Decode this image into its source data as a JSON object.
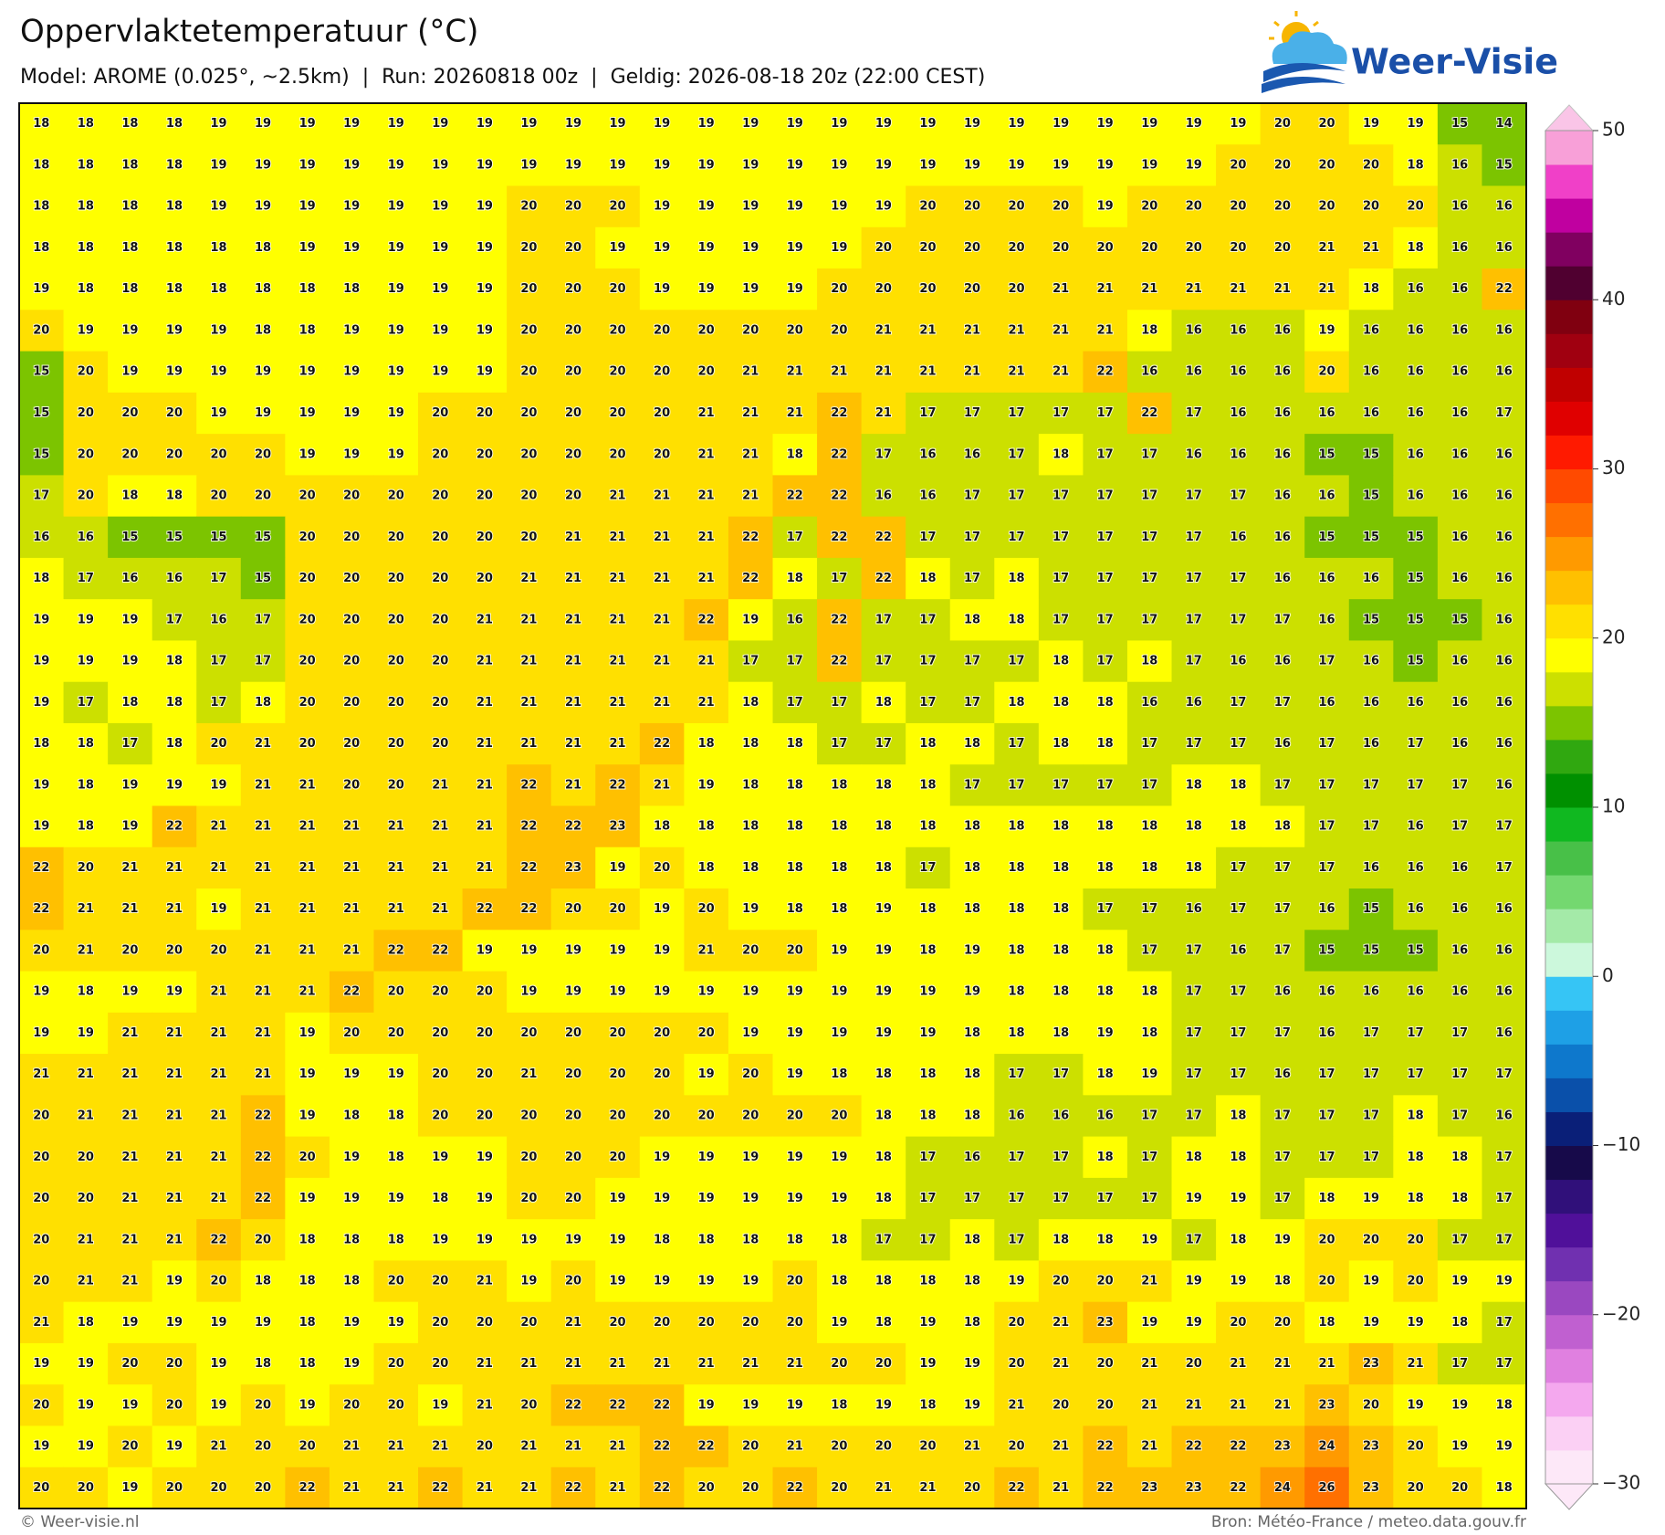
{
  "header": {
    "title": "Oppervlaktetemperatuur (°C)",
    "subtitle": "Model: AROME (0.025°, ~2.5km)  |  Run: 20260818 00z  |  Geldig: 2026-08-18 20z (22:00 CEST)"
  },
  "logo": {
    "text": "Weer-Visie"
  },
  "map": {
    "values": [
      [
        18,
        18,
        18,
        18,
        19,
        19,
        19,
        19,
        19,
        19,
        19,
        19,
        19,
        19,
        19,
        19,
        19,
        19,
        19,
        19,
        19,
        19,
        19,
        19,
        19,
        19,
        19,
        19,
        20,
        20,
        19,
        19,
        15,
        14
      ],
      [
        18,
        18,
        18,
        18,
        19,
        19,
        19,
        19,
        19,
        19,
        19,
        19,
        19,
        19,
        19,
        19,
        19,
        19,
        19,
        19,
        19,
        19,
        19,
        19,
        19,
        19,
        19,
        20,
        20,
        20,
        20,
        18,
        16,
        15
      ],
      [
        18,
        18,
        18,
        18,
        19,
        19,
        19,
        19,
        19,
        19,
        19,
        20,
        20,
        20,
        19,
        19,
        19,
        19,
        19,
        19,
        20,
        20,
        20,
        20,
        19,
        20,
        20,
        20,
        20,
        20,
        20,
        20,
        16,
        16
      ],
      [
        18,
        18,
        18,
        18,
        18,
        18,
        19,
        19,
        19,
        19,
        19,
        20,
        20,
        19,
        19,
        19,
        19,
        19,
        19,
        20,
        20,
        20,
        20,
        20,
        20,
        20,
        20,
        20,
        20,
        21,
        21,
        18,
        16,
        16
      ],
      [
        19,
        18,
        18,
        18,
        18,
        18,
        18,
        18,
        19,
        19,
        19,
        20,
        20,
        20,
        19,
        19,
        19,
        19,
        20,
        20,
        20,
        20,
        20,
        21,
        21,
        21,
        21,
        21,
        21,
        21,
        18,
        16,
        16,
        22
      ],
      [
        20,
        19,
        19,
        19,
        19,
        18,
        18,
        19,
        19,
        19,
        19,
        20,
        20,
        20,
        20,
        20,
        20,
        20,
        20,
        21,
        21,
        21,
        21,
        21,
        21,
        18,
        16,
        16,
        16,
        19,
        16,
        16,
        16,
        16
      ],
      [
        15,
        20,
        19,
        19,
        19,
        19,
        19,
        19,
        19,
        19,
        19,
        20,
        20,
        20,
        20,
        20,
        21,
        21,
        21,
        21,
        21,
        21,
        21,
        21,
        22,
        16,
        16,
        16,
        16,
        20,
        16,
        16,
        16,
        16
      ],
      [
        15,
        20,
        20,
        20,
        19,
        19,
        19,
        19,
        19,
        20,
        20,
        20,
        20,
        20,
        20,
        21,
        21,
        21,
        22,
        21,
        17,
        17,
        17,
        17,
        17,
        22,
        17,
        16,
        16,
        16,
        16,
        16,
        16,
        17
      ],
      [
        15,
        20,
        20,
        20,
        20,
        20,
        19,
        19,
        19,
        20,
        20,
        20,
        20,
        20,
        20,
        21,
        21,
        18,
        22,
        17,
        16,
        16,
        17,
        18,
        17,
        17,
        16,
        16,
        16,
        15,
        15,
        16,
        16,
        16
      ],
      [
        17,
        20,
        18,
        18,
        20,
        20,
        20,
        20,
        20,
        20,
        20,
        20,
        20,
        21,
        21,
        21,
        21,
        22,
        22,
        16,
        16,
        17,
        17,
        17,
        17,
        17,
        17,
        17,
        16,
        16,
        15,
        16,
        16,
        16
      ],
      [
        16,
        16,
        15,
        15,
        15,
        15,
        20,
        20,
        20,
        20,
        20,
        20,
        21,
        21,
        21,
        21,
        22,
        17,
        22,
        22,
        17,
        17,
        17,
        17,
        17,
        17,
        17,
        16,
        16,
        15,
        15,
        15,
        16,
        16
      ],
      [
        18,
        17,
        16,
        16,
        17,
        15,
        20,
        20,
        20,
        20,
        20,
        21,
        21,
        21,
        21,
        21,
        22,
        18,
        17,
        22,
        18,
        17,
        18,
        17,
        17,
        17,
        17,
        17,
        16,
        16,
        16,
        15,
        16,
        16
      ],
      [
        19,
        19,
        19,
        17,
        16,
        17,
        20,
        20,
        20,
        20,
        21,
        21,
        21,
        21,
        21,
        22,
        19,
        16,
        22,
        17,
        17,
        18,
        18,
        17,
        17,
        17,
        17,
        17,
        17,
        16,
        15,
        15,
        15,
        16
      ],
      [
        19,
        19,
        19,
        18,
        17,
        17,
        20,
        20,
        20,
        20,
        21,
        21,
        21,
        21,
        21,
        21,
        17,
        17,
        22,
        17,
        17,
        17,
        17,
        18,
        17,
        18,
        17,
        16,
        16,
        17,
        16,
        15,
        16,
        16
      ],
      [
        19,
        17,
        18,
        18,
        17,
        18,
        20,
        20,
        20,
        20,
        21,
        21,
        21,
        21,
        21,
        21,
        18,
        17,
        17,
        18,
        17,
        17,
        18,
        18,
        18,
        16,
        16,
        17,
        17,
        16,
        16,
        16,
        16,
        16
      ],
      [
        18,
        18,
        17,
        18,
        20,
        21,
        20,
        20,
        20,
        20,
        21,
        21,
        21,
        21,
        22,
        18,
        18,
        18,
        17,
        17,
        18,
        18,
        17,
        18,
        18,
        17,
        17,
        17,
        16,
        17,
        16,
        17,
        16,
        16
      ],
      [
        19,
        18,
        19,
        19,
        19,
        21,
        21,
        20,
        20,
        21,
        21,
        22,
        21,
        22,
        21,
        19,
        18,
        18,
        18,
        18,
        18,
        17,
        17,
        17,
        17,
        17,
        18,
        18,
        17,
        17,
        17,
        17,
        17,
        16
      ],
      [
        19,
        18,
        19,
        22,
        21,
        21,
        21,
        21,
        21,
        21,
        21,
        22,
        22,
        23,
        18,
        18,
        18,
        18,
        18,
        18,
        18,
        18,
        18,
        18,
        18,
        18,
        18,
        18,
        18,
        17,
        17,
        16,
        17,
        17
      ],
      [
        22,
        20,
        21,
        21,
        21,
        21,
        21,
        21,
        21,
        21,
        21,
        22,
        23,
        19,
        20,
        18,
        18,
        18,
        18,
        18,
        17,
        18,
        18,
        18,
        18,
        18,
        18,
        17,
        17,
        17,
        16,
        16,
        16,
        17
      ],
      [
        22,
        21,
        21,
        21,
        19,
        21,
        21,
        21,
        21,
        21,
        22,
        22,
        20,
        20,
        19,
        20,
        19,
        18,
        18,
        19,
        18,
        18,
        18,
        18,
        17,
        17,
        16,
        17,
        17,
        16,
        15,
        16,
        16,
        16
      ],
      [
        20,
        21,
        20,
        20,
        20,
        21,
        21,
        21,
        22,
        22,
        19,
        19,
        19,
        19,
        19,
        21,
        20,
        20,
        19,
        19,
        18,
        19,
        18,
        18,
        18,
        17,
        17,
        16,
        17,
        15,
        15,
        15,
        16,
        16
      ],
      [
        19,
        18,
        19,
        19,
        21,
        21,
        21,
        22,
        20,
        20,
        20,
        19,
        19,
        19,
        19,
        19,
        19,
        19,
        19,
        19,
        19,
        19,
        18,
        18,
        18,
        18,
        17,
        17,
        16,
        16,
        16,
        16,
        16,
        16
      ],
      [
        19,
        19,
        21,
        21,
        21,
        21,
        19,
        20,
        20,
        20,
        20,
        20,
        20,
        20,
        20,
        20,
        19,
        19,
        19,
        19,
        19,
        18,
        18,
        18,
        19,
        18,
        17,
        17,
        17,
        16,
        17,
        17,
        17,
        16
      ],
      [
        21,
        21,
        21,
        21,
        21,
        21,
        19,
        19,
        19,
        20,
        20,
        21,
        20,
        20,
        20,
        19,
        20,
        19,
        18,
        18,
        18,
        18,
        17,
        17,
        18,
        19,
        17,
        17,
        16,
        17,
        17,
        17,
        17,
        17
      ],
      [
        20,
        21,
        21,
        21,
        21,
        22,
        19,
        18,
        18,
        20,
        20,
        20,
        20,
        20,
        20,
        20,
        20,
        20,
        20,
        18,
        18,
        18,
        16,
        16,
        16,
        17,
        17,
        18,
        17,
        17,
        17,
        18,
        17,
        16
      ],
      [
        20,
        20,
        21,
        21,
        21,
        22,
        20,
        19,
        18,
        19,
        19,
        20,
        20,
        20,
        19,
        19,
        19,
        19,
        19,
        18,
        17,
        16,
        17,
        17,
        18,
        17,
        18,
        18,
        17,
        17,
        17,
        18,
        18,
        17
      ],
      [
        20,
        20,
        21,
        21,
        21,
        22,
        19,
        19,
        19,
        18,
        19,
        20,
        20,
        19,
        19,
        19,
        19,
        19,
        19,
        18,
        17,
        17,
        17,
        17,
        17,
        17,
        19,
        19,
        17,
        18,
        19,
        18,
        18,
        17
      ],
      [
        20,
        21,
        21,
        21,
        22,
        20,
        18,
        18,
        18,
        19,
        19,
        19,
        19,
        19,
        18,
        18,
        18,
        18,
        18,
        17,
        17,
        18,
        17,
        18,
        18,
        19,
        17,
        18,
        19,
        20,
        20,
        20,
        17,
        17
      ],
      [
        20,
        21,
        21,
        19,
        20,
        18,
        18,
        18,
        20,
        20,
        21,
        19,
        20,
        19,
        19,
        19,
        19,
        20,
        18,
        18,
        18,
        18,
        19,
        20,
        20,
        21,
        19,
        19,
        18,
        20,
        19,
        20,
        19,
        19
      ],
      [
        21,
        18,
        19,
        19,
        19,
        19,
        18,
        19,
        19,
        20,
        20,
        20,
        21,
        20,
        20,
        20,
        20,
        20,
        19,
        18,
        19,
        18,
        20,
        21,
        23,
        19,
        19,
        20,
        20,
        18,
        19,
        19,
        18,
        17
      ],
      [
        19,
        19,
        20,
        20,
        19,
        18,
        18,
        19,
        20,
        20,
        21,
        21,
        21,
        21,
        21,
        21,
        21,
        21,
        20,
        20,
        19,
        19,
        20,
        21,
        20,
        21,
        20,
        21,
        21,
        21,
        23,
        21,
        17,
        17
      ],
      [
        20,
        19,
        19,
        20,
        19,
        20,
        19,
        20,
        20,
        19,
        21,
        20,
        22,
        22,
        22,
        19,
        19,
        19,
        18,
        19,
        18,
        19,
        21,
        20,
        20,
        21,
        21,
        21,
        21,
        23,
        20,
        19,
        19,
        18
      ],
      [
        19,
        19,
        20,
        19,
        21,
        20,
        20,
        21,
        21,
        21,
        20,
        21,
        21,
        21,
        22,
        22,
        20,
        21,
        20,
        20,
        20,
        21,
        20,
        21,
        22,
        21,
        22,
        22,
        23,
        24,
        23,
        20,
        19,
        19
      ],
      [
        20,
        20,
        19,
        20,
        20,
        20,
        22,
        21,
        21,
        22,
        21,
        21,
        22,
        21,
        22,
        20,
        20,
        22,
        20,
        21,
        21,
        20,
        22,
        21,
        22,
        23,
        23,
        22,
        24,
        26,
        23,
        20,
        20,
        18
      ]
    ]
  },
  "colorbar": {
    "lim": [
      -30,
      50
    ],
    "ticks": [
      50,
      40,
      30,
      20,
      10,
      0,
      {
        "value": -10,
        "label": "−10"
      },
      {
        "value": -20,
        "label": "−20"
      },
      {
        "value": -30,
        "label": "−30"
      }
    ],
    "colors": [
      "#fde8f8",
      "#fbd0f4",
      "#f4a8ee",
      "#e080e0",
      "#c060d0",
      "#9a48c0",
      "#7030b0",
      "#50109a",
      "#30107a",
      "#170a4a",
      "#0a1f78",
      "#0a50aa",
      "#0e78cc",
      "#1ea0e6",
      "#36c5f5",
      "#ccf8dc",
      "#a4eaa8",
      "#74d870",
      "#48c048",
      "#10b820",
      "#009000",
      "#30a810",
      "#7cc400",
      "#cce000",
      "#ffff00",
      "#ffe000",
      "#ffc000",
      "#ff9a00",
      "#ff7000",
      "#ff4a00",
      "#ff1a00",
      "#e00000",
      "#c00000",
      "#a00010",
      "#800010",
      "#500030",
      "#800060",
      "#c000a0",
      "#f040c8",
      "#f8a0d8"
    ]
  },
  "footer": {
    "left": "© Weer-visie.nl",
    "right": "Bron: Météo-France / meteo.data.gouv.fr"
  }
}
